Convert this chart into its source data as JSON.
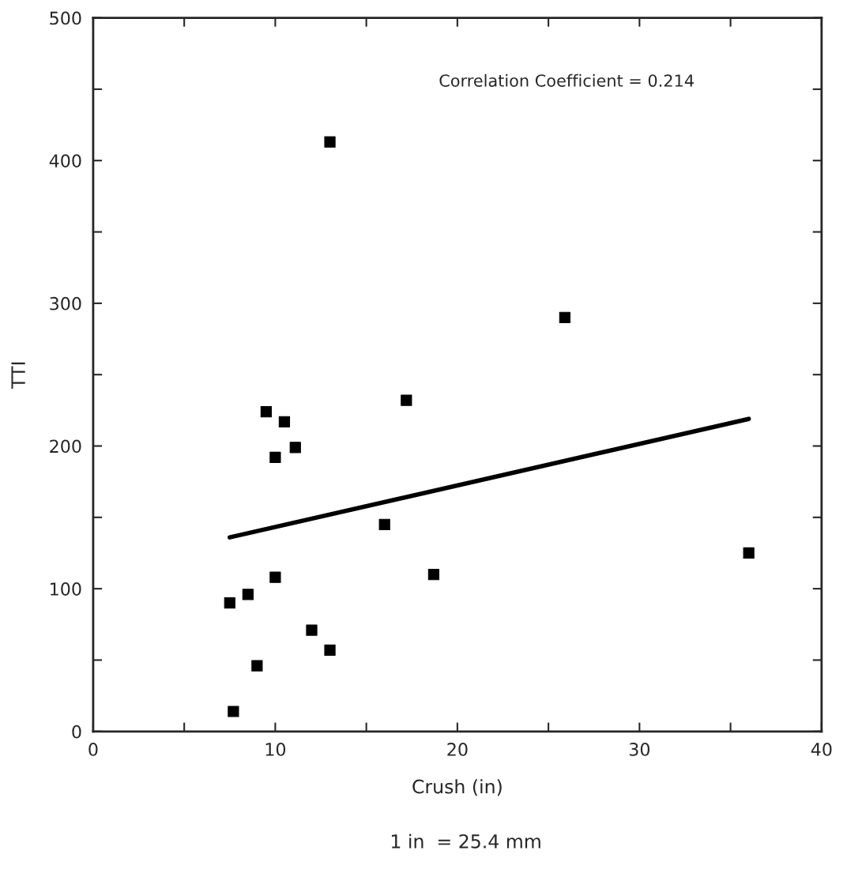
{
  "chart_data": {
    "type": "scatter",
    "xlabel": "Crush (in)",
    "ylabel": "TTI",
    "xlim": [
      0,
      40
    ],
    "ylim": [
      0,
      500
    ],
    "xticks": [
      0,
      {
        "value": 5,
        "label": null
      },
      10,
      {
        "value": 15,
        "label": null
      },
      20,
      {
        "value": 25,
        "label": null
      },
      30,
      {
        "value": 35,
        "label": null
      },
      40
    ],
    "yticks": [
      0,
      {
        "value": 50,
        "label": null
      },
      100,
      {
        "value": 150,
        "label": null
      },
      200,
      {
        "value": 250,
        "label": null
      },
      300,
      {
        "value": 350,
        "label": null
      },
      400,
      {
        "value": 450,
        "label": null
      },
      500
    ],
    "grid": false,
    "series": [
      {
        "color": "#000000",
        "marker": "square",
        "x": [
          13.0,
          9.5,
          10.5,
          11.1,
          10.0,
          17.2,
          16.0,
          18.7,
          10.0,
          8.5,
          7.5,
          12.0,
          13.0,
          9.0,
          7.7,
          25.9,
          36.0
        ],
        "values": [
          413,
          224,
          217,
          199,
          192,
          232,
          145,
          110,
          108,
          96,
          90,
          71,
          57,
          46,
          14,
          290,
          125
        ]
      },
      {
        "type": "line",
        "color": "#000000",
        "marker": "none",
        "line_style": "solid",
        "x": [
          7.5,
          36.0
        ],
        "values": [
          136,
          219
        ]
      }
    ],
    "annotations": [
      "Correlation Coefficient = 0.214",
      "1 in  = 25.4 mm"
    ]
  }
}
